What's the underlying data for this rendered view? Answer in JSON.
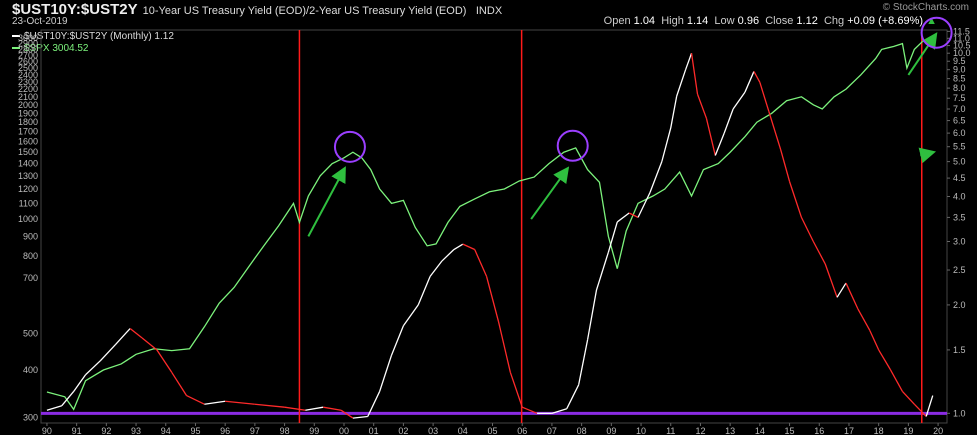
{
  "header": {
    "symbol": "$UST10Y:$UST2Y",
    "description": "10-Year US Treasury Yield (EOD)/2-Year US Treasury Yield (EOD)",
    "exchange": "INDX",
    "date": "23-Oct-2019",
    "brand": "© StockCharts.com",
    "stats": {
      "open_label": "Open",
      "open": "1.04",
      "high_label": "High",
      "high": "1.14",
      "low_label": "Low",
      "low": "0.96",
      "close_label": "Close",
      "close": "1.12",
      "chg_label": "Chg",
      "chg": "+0.09 (+8.69%)",
      "chg_arrow": "▲"
    }
  },
  "legend": [
    {
      "label": "$UST10Y:$UST2Y (Monthly) 1.12",
      "color": "#ffffff"
    },
    {
      "label": "$SPX 3004.52",
      "color": "#7cf27c"
    }
  ],
  "chart_data": {
    "type": "line",
    "x": [
      1990,
      1991,
      1992,
      1993,
      1994,
      1995,
      1996,
      1997,
      1998,
      1999,
      2000,
      2001,
      2002,
      2003,
      2004,
      2005,
      2006,
      2007,
      2008,
      2009,
      2010,
      2011,
      2012,
      2013,
      2014,
      2015,
      2016,
      2017,
      2018,
      2019
    ],
    "xlim": [
      1989.8,
      2020.3
    ],
    "x_tick_labels": [
      "90",
      "91",
      "92",
      "93",
      "94",
      "95",
      "96",
      "97",
      "98",
      "99",
      "00",
      "01",
      "02",
      "03",
      "04",
      "05",
      "06",
      "07",
      "08",
      "09",
      "10",
      "11",
      "12",
      "13",
      "14",
      "15",
      "16",
      "17",
      "18",
      "19",
      "20"
    ],
    "scale": "log",
    "series": [
      {
        "name": "$UST10Y:$UST2Y (Monthly) 1.12",
        "color": "#ffffff",
        "axis": "right",
        "points": [
          [
            1990.0,
            1.02
          ],
          [
            1990.5,
            1.05
          ],
          [
            1990.9,
            1.15
          ],
          [
            1991.3,
            1.28
          ],
          [
            1991.8,
            1.4
          ],
          [
            1992.3,
            1.55
          ],
          [
            1992.8,
            1.72
          ],
          [
            1993.2,
            1.62
          ],
          [
            1993.7,
            1.5
          ],
          [
            1994.2,
            1.3
          ],
          [
            1994.7,
            1.12
          ],
          [
            1995.3,
            1.06
          ],
          [
            1996.0,
            1.08
          ],
          [
            1997.0,
            1.06
          ],
          [
            1998.0,
            1.04
          ],
          [
            1998.7,
            1.02
          ],
          [
            1999.3,
            1.04
          ],
          [
            1999.9,
            1.02
          ],
          [
            2000.3,
            0.97
          ],
          [
            2000.8,
            0.98
          ],
          [
            2001.2,
            1.15
          ],
          [
            2001.6,
            1.45
          ],
          [
            2002.0,
            1.75
          ],
          [
            2002.5,
            2.0
          ],
          [
            2002.9,
            2.4
          ],
          [
            2003.3,
            2.65
          ],
          [
            2003.7,
            2.85
          ],
          [
            2004.0,
            2.95
          ],
          [
            2004.4,
            2.85
          ],
          [
            2004.8,
            2.4
          ],
          [
            2005.2,
            1.8
          ],
          [
            2005.6,
            1.3
          ],
          [
            2006.0,
            1.04
          ],
          [
            2006.5,
            1.0
          ],
          [
            2007.0,
            1.0
          ],
          [
            2007.5,
            1.03
          ],
          [
            2007.9,
            1.2
          ],
          [
            2008.2,
            1.6
          ],
          [
            2008.5,
            2.2
          ],
          [
            2008.9,
            2.8
          ],
          [
            2009.2,
            3.4
          ],
          [
            2009.6,
            3.6
          ],
          [
            2009.9,
            3.5
          ],
          [
            2010.3,
            4.1
          ],
          [
            2010.7,
            5.0
          ],
          [
            2011.0,
            6.2
          ],
          [
            2011.2,
            7.6
          ],
          [
            2011.5,
            9.0
          ],
          [
            2011.7,
            10.0
          ],
          [
            2011.9,
            7.7
          ],
          [
            2012.2,
            6.6
          ],
          [
            2012.5,
            5.2
          ],
          [
            2012.8,
            6.0
          ],
          [
            2013.1,
            7.0
          ],
          [
            2013.5,
            7.8
          ],
          [
            2013.8,
            8.9
          ],
          [
            2014.0,
            8.3
          ],
          [
            2014.3,
            6.9
          ],
          [
            2014.7,
            5.4
          ],
          [
            2015.0,
            4.4
          ],
          [
            2015.4,
            3.5
          ],
          [
            2015.8,
            3.0
          ],
          [
            2016.2,
            2.6
          ],
          [
            2016.6,
            2.1
          ],
          [
            2016.9,
            2.3
          ],
          [
            2017.3,
            1.95
          ],
          [
            2017.7,
            1.7
          ],
          [
            2018.0,
            1.5
          ],
          [
            2018.4,
            1.32
          ],
          [
            2018.8,
            1.15
          ],
          [
            2019.2,
            1.06
          ],
          [
            2019.6,
            0.98
          ],
          [
            2019.82,
            1.12
          ]
        ]
      },
      {
        "name": "$SPX 3004.52",
        "color": "#7cf27c",
        "axis": "left",
        "points": [
          [
            1990.0,
            350
          ],
          [
            1990.6,
            340
          ],
          [
            1990.9,
            315
          ],
          [
            1991.3,
            375
          ],
          [
            1991.9,
            400
          ],
          [
            1992.5,
            415
          ],
          [
            1993.0,
            440
          ],
          [
            1993.6,
            455
          ],
          [
            1994.2,
            450
          ],
          [
            1994.8,
            455
          ],
          [
            1995.3,
            520
          ],
          [
            1995.8,
            600
          ],
          [
            1996.3,
            660
          ],
          [
            1996.8,
            750
          ],
          [
            1997.3,
            850
          ],
          [
            1997.8,
            960
          ],
          [
            1998.3,
            1100
          ],
          [
            1998.5,
            980
          ],
          [
            1998.8,
            1150
          ],
          [
            1999.2,
            1300
          ],
          [
            1999.6,
            1400
          ],
          [
            2000.0,
            1450
          ],
          [
            2000.3,
            1500
          ],
          [
            2000.6,
            1450
          ],
          [
            2000.9,
            1350
          ],
          [
            2001.2,
            1200
          ],
          [
            2001.6,
            1100
          ],
          [
            2002.0,
            1120
          ],
          [
            2002.4,
            950
          ],
          [
            2002.8,
            850
          ],
          [
            2003.1,
            860
          ],
          [
            2003.5,
            980
          ],
          [
            2003.9,
            1080
          ],
          [
            2004.4,
            1130
          ],
          [
            2004.9,
            1180
          ],
          [
            2005.4,
            1200
          ],
          [
            2005.9,
            1260
          ],
          [
            2006.4,
            1290
          ],
          [
            2006.9,
            1400
          ],
          [
            2007.4,
            1500
          ],
          [
            2007.8,
            1540
          ],
          [
            2008.2,
            1350
          ],
          [
            2008.6,
            1250
          ],
          [
            2008.9,
            900
          ],
          [
            2009.2,
            740
          ],
          [
            2009.5,
            930
          ],
          [
            2009.9,
            1100
          ],
          [
            2010.4,
            1150
          ],
          [
            2010.8,
            1200
          ],
          [
            2011.3,
            1330
          ],
          [
            2011.7,
            1150
          ],
          [
            2012.1,
            1350
          ],
          [
            2012.6,
            1400
          ],
          [
            2013.0,
            1500
          ],
          [
            2013.5,
            1650
          ],
          [
            2013.9,
            1800
          ],
          [
            2014.4,
            1900
          ],
          [
            2014.9,
            2050
          ],
          [
            2015.4,
            2100
          ],
          [
            2015.8,
            2000
          ],
          [
            2016.1,
            1950
          ],
          [
            2016.5,
            2100
          ],
          [
            2016.9,
            2200
          ],
          [
            2017.4,
            2400
          ],
          [
            2017.9,
            2650
          ],
          [
            2018.1,
            2800
          ],
          [
            2018.5,
            2850
          ],
          [
            2018.8,
            2900
          ],
          [
            2018.95,
            2500
          ],
          [
            2019.2,
            2800
          ],
          [
            2019.5,
            2950
          ],
          [
            2019.82,
            3004.52
          ]
        ]
      }
    ],
    "left_axis": {
      "ylim": [
        290,
        3150
      ],
      "ticks": [
        300,
        400,
        500,
        700,
        800,
        900,
        1000,
        1100,
        1200,
        1300,
        1400,
        1500,
        1600,
        1700,
        1800,
        1900,
        2000,
        2100,
        2200,
        2300,
        2400,
        2500,
        2600,
        2700,
        2800,
        2900,
        3000
      ]
    },
    "right_axis": {
      "ylim": [
        0.94,
        11.6
      ],
      "ticks": [
        1.0,
        1.5,
        2.0,
        2.5,
        3.0,
        3.5,
        4.0,
        4.5,
        5.0,
        5.5,
        6.0,
        6.5,
        7.0,
        7.5,
        8.0,
        8.5,
        9.0,
        9.5,
        10.0,
        10.5,
        11.0,
        11.5
      ]
    },
    "vertical_lines_red": [
      1998.5,
      2005.98,
      2019.45
    ],
    "horizontal_line_purple": 1.0,
    "annotations": {
      "circles": [
        [
          2000.2,
          1550,
          "left"
        ],
        [
          2007.7,
          1560,
          "left"
        ],
        [
          2019.95,
          11.4,
          "right"
        ]
      ],
      "arrows": [
        [
          1998.8,
          900,
          2000.0,
          1350,
          "left"
        ],
        [
          2006.3,
          1000,
          2007.5,
          1350,
          "left"
        ],
        [
          2019.0,
          8.7,
          2019.9,
          11.2,
          "right"
        ],
        [
          2019.4,
          5.2,
          2019.8,
          5.3,
          "right"
        ]
      ]
    },
    "grid": false,
    "legend_position": "top-left",
    "colors": {
      "inversion_segment": "#ff2a2a",
      "circle": "#9b3fff",
      "arrow": "#2fbf3f",
      "vline": "#ff1a1a",
      "hline": "#8a2be2"
    }
  }
}
